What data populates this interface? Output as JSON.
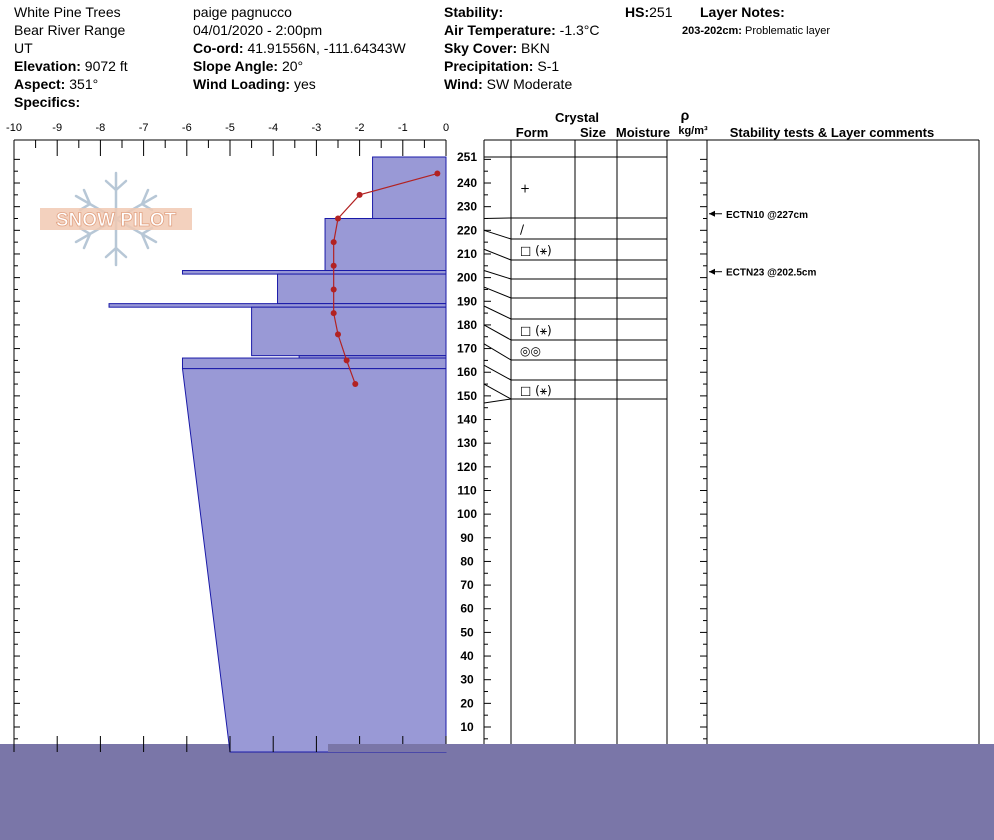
{
  "header": {
    "location": "White Pine Trees",
    "range": "Bear River Range",
    "state": "UT",
    "elevation_label": "Elevation:",
    "elevation": "9072 ft",
    "aspect_label": "Aspect:",
    "aspect": "351°",
    "specifics_label": "Specifics:",
    "observer": "paige pagnucco",
    "datetime": "04/01/2020 - 2:00pm",
    "coord_label": "Co-ord:",
    "coord": "41.91556N, -111.64343W",
    "slope_label": "Slope Angle:",
    "slope": "20°",
    "wind_loading_label": "Wind Loading:",
    "wind_loading": "yes",
    "stability_label": "Stability:",
    "air_temp_label": "Air Temperature:",
    "air_temp": "-1.3°C",
    "sky_label": "Sky Cover:",
    "sky": "BKN",
    "precip_label": "Precipitation:",
    "precip": "S-1",
    "wind_label": "Wind:",
    "wind": "SW Moderate",
    "hs_label": "HS:",
    "hs": "251",
    "layer_notes_label": "Layer Notes:",
    "layer_note_depth": "203-202cm:",
    "layer_note_text": "Problematic layer"
  },
  "columns": {
    "crystal": "Crystal",
    "form": "Form",
    "size": "Size",
    "moisture": "Moisture",
    "rho": "ρ",
    "density_unit": "kg/m³",
    "stability": "Stability tests & Layer comments"
  },
  "logo_text": "SNOW PILOT",
  "colors": {
    "layer_fill": "#9999d6",
    "layer_stroke": "#1a1aa8",
    "temp": "#b22222",
    "band": "#7a76a8"
  },
  "chart_data": {
    "type": "snow-profile",
    "x_ticks": [
      "-10",
      "-9",
      "-8",
      "-7",
      "-6",
      "-5",
      "-4",
      "-3",
      "-2",
      "-1",
      "0"
    ],
    "xlim": [
      -10,
      0
    ],
    "ylim": [
      0,
      251
    ],
    "y_ticks": [
      "251",
      "240",
      "230",
      "220",
      "210",
      "200",
      "190",
      "180",
      "170",
      "160",
      "150",
      "140",
      "130",
      "120",
      "110",
      "100",
      "90",
      "80",
      "70",
      "60",
      "50",
      "40",
      "30",
      "20",
      "10"
    ],
    "hardness_layers": [
      {
        "top": 251,
        "bottom": 225,
        "hardness": -1.7
      },
      {
        "top": 225,
        "bottom": 203,
        "hardness": -2.8
      },
      {
        "top": 203,
        "bottom": 201.5,
        "hardness": -6.1
      },
      {
        "top": 201.5,
        "bottom": 189,
        "hardness": -3.9
      },
      {
        "top": 189,
        "bottom": 187.5,
        "hardness": -7.8
      },
      {
        "top": 187.5,
        "bottom": 167,
        "hardness": -4.5
      },
      {
        "top": 167,
        "bottom": 166,
        "hardness": -3.4
      },
      {
        "top": 166,
        "bottom": 161.5,
        "hardness": -6.1
      },
      {
        "top": 161.5,
        "bottom": 0,
        "hardness_top": -6.1,
        "hardness_bottom": -5.0
      }
    ],
    "temperature_profile": [
      {
        "height": 244,
        "temp": -0.2
      },
      {
        "height": 235,
        "temp": -2.0
      },
      {
        "height": 225,
        "temp": -2.5
      },
      {
        "height": 215,
        "temp": -2.6
      },
      {
        "height": 205,
        "temp": -2.6
      },
      {
        "height": 195,
        "temp": -2.6
      },
      {
        "height": 185,
        "temp": -2.6
      },
      {
        "height": 176,
        "temp": -2.5
      },
      {
        "height": 165,
        "temp": -2.3
      },
      {
        "height": 155,
        "temp": -2.1
      }
    ],
    "crystal_layers": [
      {
        "top": 251,
        "bottom": 225,
        "form": "+"
      },
      {
        "top": 225,
        "bottom": 220,
        "form": "/"
      },
      {
        "top": 220,
        "bottom": 212,
        "form": "□ (⚹)"
      },
      {
        "top": 212,
        "bottom": 203,
        "form": ""
      },
      {
        "top": 203,
        "bottom": 196,
        "form": ""
      },
      {
        "top": 196,
        "bottom": 188,
        "form": ""
      },
      {
        "top": 188,
        "bottom": 180,
        "form": "□ (⚹)"
      },
      {
        "top": 180,
        "bottom": 172,
        "form": "◎◎"
      },
      {
        "top": 172,
        "bottom": 163,
        "form": ""
      },
      {
        "top": 163,
        "bottom": 155,
        "form": "□ (⚹)"
      },
      {
        "top": 155,
        "bottom": 147,
        "form": ""
      }
    ],
    "stability_tests": [
      {
        "height": 227,
        "label": "ECTN10 @227cm"
      },
      {
        "height": 202.5,
        "label": "ECTN23 @202.5cm"
      }
    ]
  }
}
